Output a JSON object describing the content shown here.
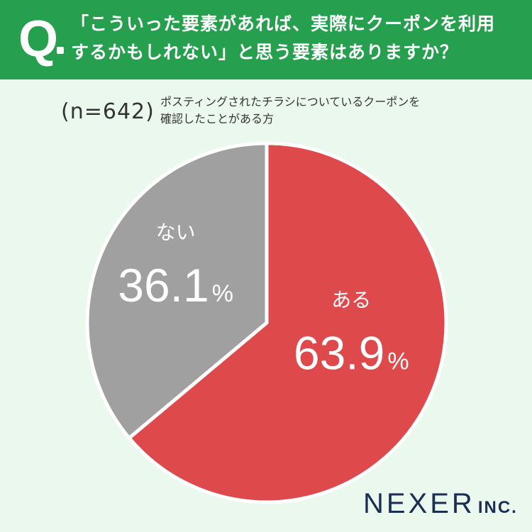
{
  "header": {
    "q_mark": "Q",
    "question_lines": [
      "「こういった要素があれば、実際にクーポンを利用",
      "するかもしれない」と思う要素はありますか？"
    ]
  },
  "sample": {
    "n_label": "(n=642)",
    "target_lines": [
      "ポスティングされたチラシについているクーポンを",
      "確認したことがある方"
    ]
  },
  "chart_data": {
    "type": "pie",
    "slices": [
      {
        "label": "ある",
        "value": 63.9,
        "value_text": "63.9",
        "unit": "%",
        "color": "#de4a4c"
      },
      {
        "label": "ない",
        "value": 36.1,
        "value_text": "36.1",
        "unit": "%",
        "color": "#a0a0a0"
      }
    ],
    "start": "12 o'clock",
    "direction": "clockwise",
    "separator_color": "#ffffff"
  },
  "brand": {
    "name": "NEXER",
    "suffix": "INC."
  },
  "colors": {
    "background": "#eaf8ee",
    "header": "#26a04f",
    "brand_text": "#1c2d52"
  }
}
